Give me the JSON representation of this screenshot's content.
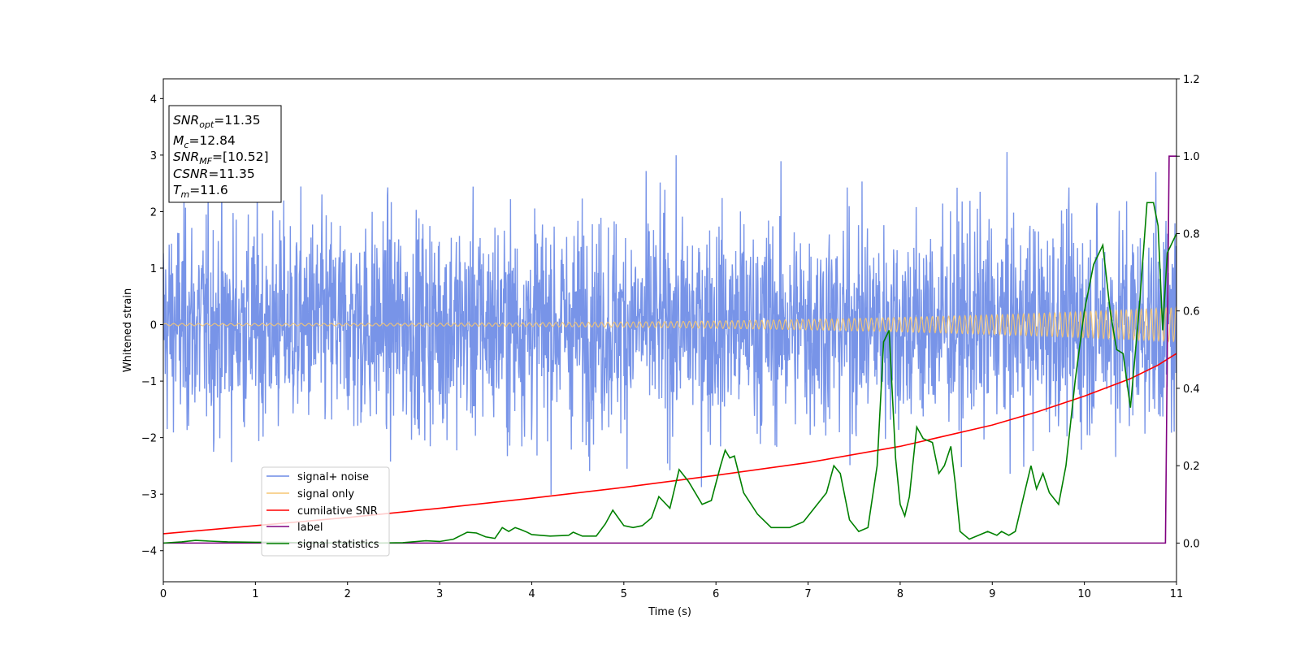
{
  "chart_data": {
    "type": "line",
    "xlabel": "Time (s)",
    "ylabel": "Whitened strain",
    "xlim": [
      0,
      11
    ],
    "ylim_left": [
      -4.55,
      4.35
    ],
    "ylim_right": [
      -0.1,
      1.2
    ],
    "x_ticks": [
      0,
      1,
      2,
      3,
      4,
      5,
      6,
      7,
      8,
      9,
      10,
      11
    ],
    "y_ticks_left": [
      -4,
      -3,
      -2,
      -1,
      0,
      1,
      2,
      3,
      4
    ],
    "y_ticks_right": [
      0.0,
      0.2,
      0.4,
      0.6,
      0.8,
      1.0,
      1.2
    ],
    "grid": false,
    "legend_position": "lower-left",
    "info_box": {
      "lines": [
        {
          "sym": "SNR",
          "sub": "opt",
          "val": "=11.35"
        },
        {
          "sym": "M",
          "sub": "c",
          "val": "=12.84"
        },
        {
          "sym": "SNR",
          "sub": "MF",
          "val": "=[10.52]"
        },
        {
          "sym": "CSNR",
          "sub": "",
          "val": "=11.35"
        },
        {
          "sym": "T",
          "sub": "m",
          "val": "=11.6"
        }
      ]
    },
    "series": [
      {
        "name": "signal+ noise",
        "color": "#6d8be6",
        "axis": "left",
        "kind": "noise",
        "description_level": "white noise, std ~1.0, peaks to about ±3.5"
      },
      {
        "name": "signal only",
        "color": "#f5c572",
        "axis": "left",
        "kind": "chirp",
        "amplitude_start": 0.02,
        "amplitude_end": 0.3
      },
      {
        "name": "cumilative SNR",
        "color": "#ff0000",
        "axis": "right",
        "x": [
          0,
          1,
          2,
          3,
          4,
          5,
          6,
          7,
          8,
          9,
          9.5,
          10,
          10.5,
          10.8,
          11
        ],
        "y": [
          0.024,
          0.045,
          0.066,
          0.09,
          0.116,
          0.144,
          0.175,
          0.208,
          0.25,
          0.305,
          0.34,
          0.38,
          0.425,
          0.46,
          0.49
        ]
      },
      {
        "name": "label",
        "color": "#800080",
        "axis": "right",
        "x": [
          0,
          10.88,
          10.92,
          11
        ],
        "y": [
          0.0,
          0.0,
          1.0,
          1.0
        ]
      },
      {
        "name": "signal statistics",
        "color": "#008000",
        "axis": "right",
        "x": [
          0,
          0.2,
          0.35,
          0.5,
          0.7,
          1.0,
          1.3,
          1.6,
          2.0,
          2.3,
          2.6,
          2.85,
          3.0,
          3.15,
          3.3,
          3.4,
          3.5,
          3.6,
          3.68,
          3.75,
          3.82,
          3.88,
          3.95,
          4.0,
          4.2,
          4.4,
          4.45,
          4.55,
          4.7,
          4.8,
          4.88,
          5.0,
          5.1,
          5.2,
          5.3,
          5.38,
          5.5,
          5.6,
          5.7,
          5.85,
          5.95,
          6.05,
          6.1,
          6.15,
          6.2,
          6.3,
          6.45,
          6.6,
          6.8,
          6.95,
          7.1,
          7.2,
          7.28,
          7.35,
          7.45,
          7.55,
          7.65,
          7.75,
          7.82,
          7.88,
          7.95,
          8.0,
          8.05,
          8.1,
          8.18,
          8.25,
          8.35,
          8.42,
          8.48,
          8.55,
          8.6,
          8.65,
          8.75,
          8.85,
          8.95,
          9.05,
          9.1,
          9.18,
          9.25,
          9.35,
          9.42,
          9.48,
          9.55,
          9.62,
          9.72,
          9.8,
          9.9,
          10.0,
          10.1,
          10.2,
          10.28,
          10.35,
          10.42,
          10.5,
          10.6,
          10.68,
          10.75,
          10.8,
          10.85,
          10.9,
          11.0
        ],
        "y": [
          0.0,
          0.003,
          0.007,
          0.005,
          0.003,
          0.002,
          0.002,
          0.0,
          0.001,
          0.0,
          0.001,
          0.006,
          0.004,
          0.01,
          0.028,
          0.026,
          0.016,
          0.012,
          0.04,
          0.03,
          0.04,
          0.035,
          0.028,
          0.022,
          0.018,
          0.02,
          0.028,
          0.018,
          0.018,
          0.05,
          0.085,
          0.045,
          0.04,
          0.045,
          0.065,
          0.12,
          0.09,
          0.19,
          0.16,
          0.1,
          0.11,
          0.2,
          0.24,
          0.22,
          0.225,
          0.13,
          0.075,
          0.04,
          0.04,
          0.055,
          0.1,
          0.13,
          0.2,
          0.18,
          0.06,
          0.03,
          0.04,
          0.2,
          0.52,
          0.55,
          0.22,
          0.1,
          0.07,
          0.12,
          0.3,
          0.27,
          0.26,
          0.18,
          0.2,
          0.25,
          0.15,
          0.03,
          0.01,
          0.02,
          0.03,
          0.02,
          0.03,
          0.02,
          0.03,
          0.13,
          0.2,
          0.14,
          0.18,
          0.13,
          0.1,
          0.2,
          0.42,
          0.6,
          0.72,
          0.77,
          0.6,
          0.5,
          0.49,
          0.35,
          0.62,
          0.88,
          0.88,
          0.82,
          0.55,
          0.75,
          0.8
        ]
      }
    ]
  }
}
